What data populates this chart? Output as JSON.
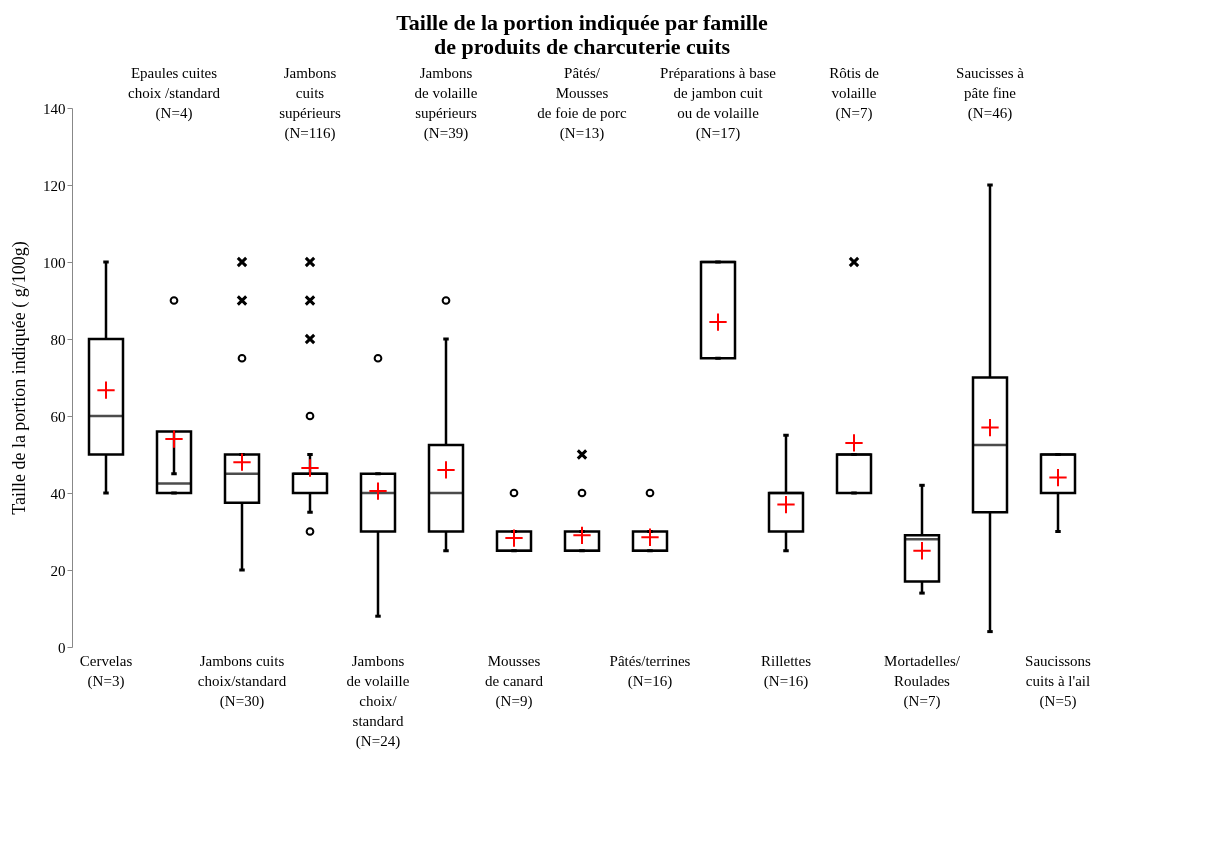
{
  "chart_data": {
    "type": "box",
    "title": "Taille de la portion indiquée par famille\nde produits de charcuterie cuits",
    "ylabel": "Taille de la portion indiquée ( g/100g)",
    "categories": [
      "Cervelas\n(N=3)",
      "Epaules cuites\nchoix /standard\n(N=4)",
      "Jambons cuits\nchoix/standard\n(N=30)",
      "Jambons\ncuits\nsupérieurs\n(N=116)",
      "Jambons\nde volaille\nchoix/\nstandard\n(N=24)",
      "Jambons\nde volaille\nsupérieurs\n(N=39)",
      "Mousses\nde canard\n(N=9)",
      "Pâtés/\nMousses\nde foie de porc\n(N=13)",
      "Pâtés/terrines\n(N=16)",
      "Préparations à base\nde jambon cuit\nou de volaille\n(N=17)",
      "Rillettes\n(N=16)",
      "Rôtis de\nvolaille\n(N=7)",
      "Mortadelles/\nRoulades\n(N=7)",
      "Saucisses à\npâte fine\n(N=46)",
      "Saucissons\ncuits à l'ail\n(N=5)"
    ],
    "boxes": [
      {
        "low": 40,
        "q1": 50,
        "median": 60,
        "q3": 80,
        "high": 100,
        "mean": 66.7
      },
      {
        "low": 40,
        "q1": 40,
        "median": 42.5,
        "q3": 56,
        "high": 45,
        "mean": 54,
        "outliers": [
          90
        ]
      },
      {
        "low": 20,
        "q1": 37.5,
        "median": 45,
        "q3": 50,
        "high": 50,
        "mean": 48,
        "outliers": [
          75
        ]
      },
      {
        "low": 35,
        "q1": 40,
        "median": 45,
        "q3": 45,
        "high": 50,
        "mean": 46.5,
        "outliers": [
          30,
          60
        ]
      },
      {
        "low": 8,
        "q1": 30,
        "median": 40,
        "q3": 45,
        "high": 45,
        "mean": 40.5,
        "outliers": [
          75
        ]
      },
      {
        "low": 25,
        "q1": 30,
        "median": 40,
        "q3": 52.5,
        "high": 80,
        "mean": 46,
        "outliers": [
          90
        ]
      },
      {
        "low": 25,
        "q1": 25,
        "median": 25,
        "q3": 30,
        "high": 30,
        "mean": 28.3,
        "outliers": [
          40
        ]
      },
      {
        "low": 25,
        "q1": 25,
        "median": 25,
        "q3": 30,
        "high": 30,
        "mean": 29,
        "outliers": [
          40
        ]
      },
      {
        "low": 25,
        "q1": 25,
        "median": 25,
        "q3": 30,
        "high": 30,
        "mean": 28.5,
        "outliers": [
          40
        ]
      },
      {
        "low": 75,
        "q1": 75,
        "median": 100,
        "q3": 100,
        "high": 100,
        "mean": 84.4
      },
      {
        "low": 25,
        "q1": 30,
        "median": 40,
        "q3": 40,
        "high": 55,
        "mean": 37
      },
      {
        "low": 40,
        "q1": 40,
        "median": 50,
        "q3": 50,
        "high": 50,
        "mean": 53
      },
      {
        "low": 14,
        "q1": 17,
        "median": 28,
        "q3": 29,
        "high": 42,
        "mean": 25
      },
      {
        "low": 4,
        "q1": 35,
        "median": 52.5,
        "q3": 70,
        "high": 120,
        "mean": 57
      },
      {
        "low": 30,
        "q1": 40,
        "median": 50,
        "q3": 50,
        "high": 50,
        "mean": 44
      }
    ],
    "series": [
      {
        "type": "scatter",
        "marker": "cross",
        "color": "#000000",
        "x": [
          "Jambons cuits\nchoix/standard\n(N=30)",
          "Jambons cuits\nchoix/standard\n(N=30)",
          "Jambons\ncuits\nsupérieurs\n(N=116)",
          "Jambons\ncuits\nsupérieurs\n(N=116)",
          "Jambons\ncuits\nsupérieurs\n(N=116)",
          "Pâtés/\nMousses\nde foie de porc\n(N=13)",
          "Rôtis de\nvolaille\n(N=7)"
        ],
        "values": [
          90,
          100,
          80,
          90,
          100,
          50,
          100
        ]
      }
    ],
    "ylim": [
      0,
      140
    ],
    "yticks": [
      0,
      20,
      40,
      60,
      80,
      100,
      120,
      140
    ],
    "grid": false
  }
}
